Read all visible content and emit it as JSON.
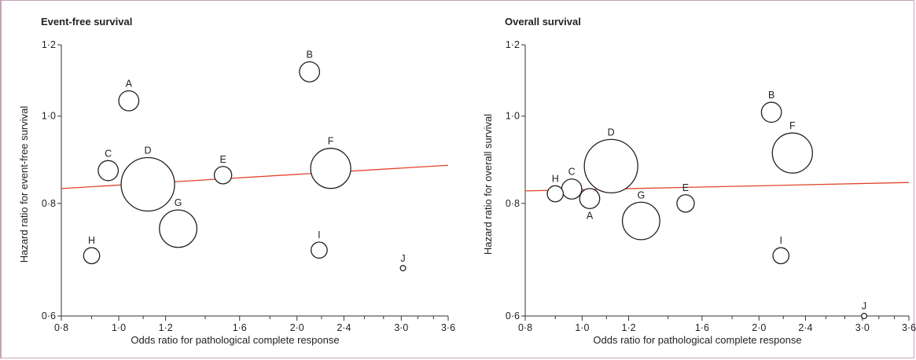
{
  "chart_data": [
    {
      "type": "scatter",
      "title": "Event-free survival",
      "xlabel": "Odds ratio for pathological complete response",
      "ylabel": "Hazard ratio for event-free survival",
      "x_scale": "log",
      "y_scale": "log",
      "xlim": [
        0.8,
        3.6
      ],
      "ylim": [
        0.6,
        1.2
      ],
      "x_ticks": [
        0.8,
        1.0,
        1.2,
        1.6,
        2.0,
        2.4,
        3.0,
        3.6
      ],
      "x_tick_labels": [
        "0·8",
        "1·0",
        "1·2",
        "1·6",
        "2·0",
        "2·4",
        "3·0",
        "3·6"
      ],
      "x_minor_ticks": [
        0.9,
        1.1,
        1.4,
        1.8,
        2.2,
        2.6,
        2.8,
        3.2,
        3.4
      ],
      "y_ticks": [
        0.6,
        0.8,
        1.0,
        1.2
      ],
      "y_tick_labels": [
        "0·6",
        "0·8",
        "1·0",
        "1·2"
      ],
      "points": [
        {
          "label": "A",
          "x": 1.04,
          "y": 1.04,
          "size": 1.5,
          "label_pos": "above"
        },
        {
          "label": "B",
          "x": 2.1,
          "y": 1.12,
          "size": 1.5,
          "label_pos": "above"
        },
        {
          "label": "C",
          "x": 0.96,
          "y": 0.87,
          "size": 1.5,
          "label_pos": "above"
        },
        {
          "label": "D",
          "x": 1.12,
          "y": 0.84,
          "size": 4.0,
          "label_pos": "above"
        },
        {
          "label": "E",
          "x": 1.5,
          "y": 0.86,
          "size": 1.3,
          "label_pos": "above"
        },
        {
          "label": "F",
          "x": 2.28,
          "y": 0.875,
          "size": 3.0,
          "label_pos": "above"
        },
        {
          "label": "G",
          "x": 1.26,
          "y": 0.75,
          "size": 2.8,
          "label_pos": "above"
        },
        {
          "label": "H",
          "x": 0.9,
          "y": 0.7,
          "size": 1.2,
          "label_pos": "above"
        },
        {
          "label": "I",
          "x": 2.18,
          "y": 0.71,
          "size": 1.2,
          "label_pos": "above"
        },
        {
          "label": "J",
          "x": 3.02,
          "y": 0.678,
          "size": 0.4,
          "label_pos": "above"
        }
      ],
      "regression_line": {
        "x": [
          0.8,
          3.6
        ],
        "y": [
          0.831,
          0.882
        ],
        "color": "#e0442a"
      }
    },
    {
      "type": "scatter",
      "title": "Overall survival",
      "xlabel": "Odds ratio for pathological complete response",
      "ylabel": "Hazard ratio for overall survival",
      "x_scale": "log",
      "y_scale": "log",
      "xlim": [
        0.8,
        3.6
      ],
      "ylim": [
        0.6,
        1.2
      ],
      "x_ticks": [
        0.8,
        1.0,
        1.2,
        1.6,
        2.0,
        2.4,
        3.0,
        3.6
      ],
      "x_tick_labels": [
        "0·8",
        "1·0",
        "1·2",
        "1·6",
        "2·0",
        "2·4",
        "3·0",
        "3·6"
      ],
      "x_minor_ticks": [
        0.9,
        1.1,
        1.4,
        1.8,
        2.2,
        2.6,
        2.8,
        3.2,
        3.4
      ],
      "y_ticks": [
        0.6,
        0.8,
        1.0,
        1.2
      ],
      "y_tick_labels": [
        "0·6",
        "0·8",
        "1·0",
        "1·2"
      ],
      "points": [
        {
          "label": "A",
          "x": 1.03,
          "y": 0.81,
          "size": 1.5,
          "label_pos": "below"
        },
        {
          "label": "B",
          "x": 2.1,
          "y": 1.01,
          "size": 1.5,
          "label_pos": "above"
        },
        {
          "label": "C",
          "x": 0.96,
          "y": 0.83,
          "size": 1.5,
          "label_pos": "above"
        },
        {
          "label": "D",
          "x": 1.12,
          "y": 0.88,
          "size": 4.0,
          "label_pos": "above"
        },
        {
          "label": "E",
          "x": 1.5,
          "y": 0.8,
          "size": 1.3,
          "label_pos": "above"
        },
        {
          "label": "F",
          "x": 2.28,
          "y": 0.91,
          "size": 3.0,
          "label_pos": "above"
        },
        {
          "label": "G",
          "x": 1.26,
          "y": 0.765,
          "size": 2.8,
          "label_pos": "above"
        },
        {
          "label": "H",
          "x": 0.9,
          "y": 0.82,
          "size": 1.2,
          "label_pos": "above"
        },
        {
          "label": "I",
          "x": 2.18,
          "y": 0.7,
          "size": 1.2,
          "label_pos": "above"
        },
        {
          "label": "J",
          "x": 3.02,
          "y": 0.6,
          "size": 0.4,
          "label_pos": "above"
        }
      ],
      "regression_line": {
        "x": [
          0.8,
          3.6
        ],
        "y": [
          0.826,
          0.844
        ],
        "color": "#e0442a"
      }
    }
  ]
}
